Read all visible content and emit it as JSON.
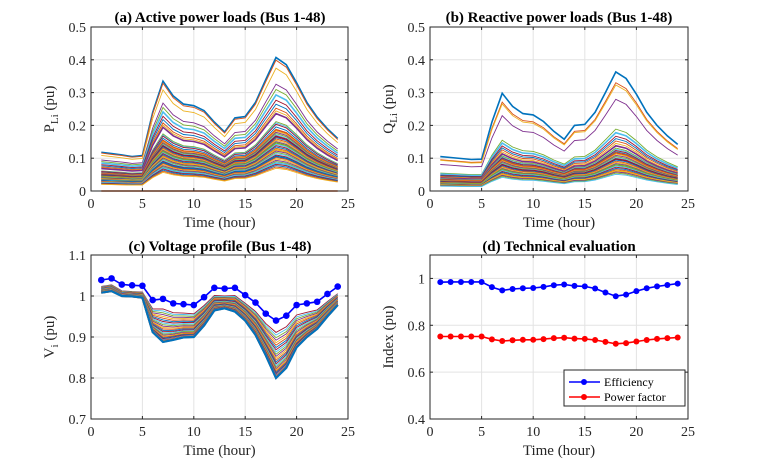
{
  "figure": {
    "panels": [
      "a",
      "b",
      "c",
      "d"
    ]
  },
  "chart_data": [
    {
      "id": "a",
      "type": "line",
      "title": "(a) Active power loads (Bus 1-48)",
      "xlabel": "Time (hour)",
      "ylabel_main": "P",
      "ylabel_sub": "Li",
      "ylabel_unit": "(pu)",
      "xlim": [
        0,
        25
      ],
      "ylim": [
        0,
        0.5
      ],
      "xticks": [
        0,
        5,
        10,
        15,
        20,
        25
      ],
      "yticks": [
        0,
        0.1,
        0.2,
        0.3,
        0.4,
        0.5
      ],
      "ytick_labels": [
        "0",
        "0.1",
        "0.2",
        "0.3",
        "0.4",
        "0.5"
      ],
      "grid": true,
      "x": [
        1,
        2,
        3,
        4,
        5,
        6,
        7,
        8,
        9,
        10,
        11,
        12,
        13,
        14,
        15,
        16,
        17,
        18,
        19,
        20,
        21,
        22,
        23,
        24
      ],
      "base_profile": [
        0.118,
        0.114,
        0.11,
        0.105,
        0.108,
        0.24,
        0.335,
        0.29,
        0.265,
        0.26,
        0.245,
        0.21,
        0.18,
        0.223,
        0.227,
        0.27,
        0.34,
        0.407,
        0.385,
        0.33,
        0.27,
        0.225,
        0.19,
        0.16
      ],
      "series_scales": [
        1.0,
        0.98,
        0.92,
        0.8,
        0.76,
        0.72,
        0.68,
        0.65,
        0.62,
        0.6,
        0.58,
        0.52,
        0.51,
        0.5,
        0.48,
        0.46,
        0.45,
        0.44,
        0.43,
        0.42,
        0.41,
        0.4,
        0.39,
        0.38,
        0.37,
        0.36,
        0.35,
        0.34,
        0.33,
        0.32,
        0.31,
        0.3,
        0.29,
        0.28,
        0.27,
        0.26,
        0.25,
        0.24,
        0.23,
        0.22,
        0.21,
        0.2,
        0.19,
        0.18,
        0.17,
        0.0
      ],
      "series_count": 48
    },
    {
      "id": "b",
      "type": "line",
      "title": "(b) Reactive power loads (Bus 1-48)",
      "xlabel": "Time (hour)",
      "ylabel_main": "Q",
      "ylabel_sub": "Li",
      "ylabel_unit": "(pu)",
      "xlim": [
        0,
        25
      ],
      "ylim": [
        0,
        0.5
      ],
      "xticks": [
        0,
        5,
        10,
        15,
        20,
        25
      ],
      "yticks": [
        0,
        0.1,
        0.2,
        0.3,
        0.4,
        0.5
      ],
      "ytick_labels": [
        "0",
        "0.1",
        "0.2",
        "0.3",
        "0.4",
        "0.5"
      ],
      "grid": true,
      "x": [
        1,
        2,
        3,
        4,
        5,
        6,
        7,
        8,
        9,
        10,
        11,
        12,
        13,
        14,
        15,
        16,
        17,
        18,
        19,
        20,
        21,
        22,
        23,
        24
      ],
      "base_profile": [
        0.105,
        0.102,
        0.099,
        0.096,
        0.097,
        0.21,
        0.298,
        0.258,
        0.236,
        0.232,
        0.212,
        0.182,
        0.158,
        0.2,
        0.203,
        0.24,
        0.3,
        0.363,
        0.343,
        0.295,
        0.24,
        0.2,
        0.168,
        0.142
      ],
      "series_scales": [
        1.0,
        0.91,
        0.89,
        0.77,
        0.52,
        0.49,
        0.46,
        0.44,
        0.42,
        0.4,
        0.38,
        0.36,
        0.35,
        0.34,
        0.33,
        0.32,
        0.31,
        0.3,
        0.29,
        0.28,
        0.27,
        0.26,
        0.25,
        0.24,
        0.23,
        0.22,
        0.21,
        0.2,
        0.19,
        0.18,
        0.17,
        0.16,
        0.15,
        0.14,
        0.0
      ],
      "series_count": 48
    },
    {
      "id": "c",
      "type": "line",
      "title": "(c) Voltage profile (Bus 1-48)",
      "xlabel": "Time (hour)",
      "ylabel_main": "V",
      "ylabel_sub": "i",
      "ylabel_unit": "(pu)",
      "xlim": [
        0,
        25
      ],
      "ylim": [
        0.7,
        1.1
      ],
      "xticks": [
        0,
        5,
        10,
        15,
        20,
        25
      ],
      "yticks": [
        0.7,
        0.8,
        0.9,
        1.0,
        1.1
      ],
      "ytick_labels": [
        "0.7",
        "0.8",
        "0.9",
        "1",
        "1.1"
      ],
      "grid": true,
      "x": [
        1,
        2,
        3,
        4,
        5,
        6,
        7,
        8,
        9,
        10,
        11,
        12,
        13,
        14,
        15,
        16,
        17,
        18,
        19,
        20,
        21,
        22,
        23,
        24
      ],
      "source_bus": [
        1.039,
        1.043,
        1.028,
        1.026,
        1.025,
        0.99,
        0.993,
        0.982,
        0.98,
        0.978,
        0.997,
        1.02,
        1.018,
        1.02,
        1.002,
        0.984,
        0.957,
        0.94,
        0.952,
        0.978,
        0.982,
        0.986,
        1.005,
        1.023
      ],
      "min_bus": [
        1.008,
        1.012,
        1.0,
        0.999,
        0.996,
        0.912,
        0.888,
        0.893,
        0.899,
        0.9,
        0.928,
        0.965,
        0.97,
        0.962,
        0.94,
        0.905,
        0.855,
        0.8,
        0.825,
        0.875,
        0.9,
        0.92,
        0.95,
        0.978
      ],
      "series_count": 48
    },
    {
      "id": "d",
      "type": "line",
      "title": "(d) Technical evaluation",
      "xlabel": "Time (hour)",
      "ylabel": "Index (pu)",
      "xlim": [
        0,
        25
      ],
      "ylim": [
        0.4,
        1.1
      ],
      "xticks": [
        0,
        5,
        10,
        15,
        20,
        25
      ],
      "yticks": [
        0.4,
        0.6,
        0.8,
        1.0
      ],
      "ytick_labels": [
        "0.4",
        "0.6",
        "0.8",
        "1"
      ],
      "grid": true,
      "legend": "bottom-right",
      "x": [
        1,
        2,
        3,
        4,
        5,
        6,
        7,
        8,
        9,
        10,
        11,
        12,
        13,
        14,
        15,
        16,
        17,
        18,
        19,
        20,
        21,
        22,
        23,
        24
      ],
      "series": [
        {
          "name": "Efficiency",
          "color": "#0000ff",
          "values": [
            0.984,
            0.985,
            0.985,
            0.985,
            0.985,
            0.963,
            0.949,
            0.955,
            0.958,
            0.959,
            0.964,
            0.971,
            0.974,
            0.968,
            0.966,
            0.957,
            0.94,
            0.924,
            0.931,
            0.946,
            0.958,
            0.966,
            0.972,
            0.978
          ]
        },
        {
          "name": "Power factor",
          "color": "#ff0000",
          "values": [
            0.752,
            0.752,
            0.752,
            0.752,
            0.752,
            0.74,
            0.733,
            0.736,
            0.738,
            0.738,
            0.741,
            0.745,
            0.747,
            0.743,
            0.742,
            0.737,
            0.729,
            0.721,
            0.724,
            0.731,
            0.737,
            0.742,
            0.745,
            0.748
          ]
        }
      ]
    }
  ],
  "colors": {
    "palette": [
      "#0072bd",
      "#d95319",
      "#edb120",
      "#7e2f8e",
      "#77ac30",
      "#4dbeee",
      "#a2142f"
    ],
    "marker_series": "#0000ff",
    "zero_line": "#d95319"
  }
}
